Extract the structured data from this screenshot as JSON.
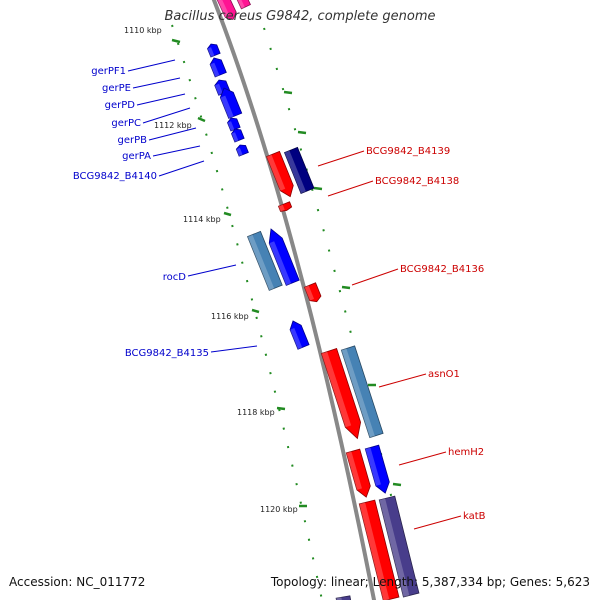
{
  "title": "Bacillus cereus G9842, complete genome",
  "accession": "Accession: NC_011772",
  "topology": "Topology: linear; Length: 5,387,334 bp; Genes: 5,623",
  "colors": {
    "backbone": "#888888",
    "tick": "#228B22",
    "forward_gene": "#0000ff",
    "reverse_gene": "#ff0000",
    "reverse_dark": "#cc0000",
    "forward_dark": "#000080",
    "rna_steel": "#4682b4",
    "rna_slate": "#483d8b",
    "pink": "#ff1493",
    "forward_label": "#0000cc",
    "reverse_label": "#cc0000"
  },
  "scale_labels": [
    "1110 kbp",
    "1112 kbp",
    "1114 kbp",
    "1116 kbp",
    "1118 kbp",
    "1120 kbp"
  ],
  "forward_genes": [
    {
      "id": "gerPF1",
      "label": "gerPF1"
    },
    {
      "id": "gerPE",
      "label": "gerPE"
    },
    {
      "id": "gerPD",
      "label": "gerPD"
    },
    {
      "id": "gerPC",
      "label": "gerPC"
    },
    {
      "id": "gerPB",
      "label": "gerPB"
    },
    {
      "id": "gerPA",
      "label": "gerPA"
    },
    {
      "id": "BCG9842_B4140",
      "label": "BCG9842_B4140"
    },
    {
      "id": "rocD",
      "label": "rocD"
    },
    {
      "id": "BCG9842_B4135",
      "label": "BCG9842_B4135"
    }
  ],
  "reverse_genes": [
    {
      "id": "BCG9842_B4139",
      "label": "BCG9842_B4139"
    },
    {
      "id": "BCG9842_B4138",
      "label": "BCG9842_B4138"
    },
    {
      "id": "BCG9842_B4136",
      "label": "BCG9842_B4136"
    },
    {
      "id": "asnO1",
      "label": "asnO1"
    },
    {
      "id": "hemH2",
      "label": "hemH2"
    },
    {
      "id": "katB",
      "label": "katB"
    }
  ]
}
